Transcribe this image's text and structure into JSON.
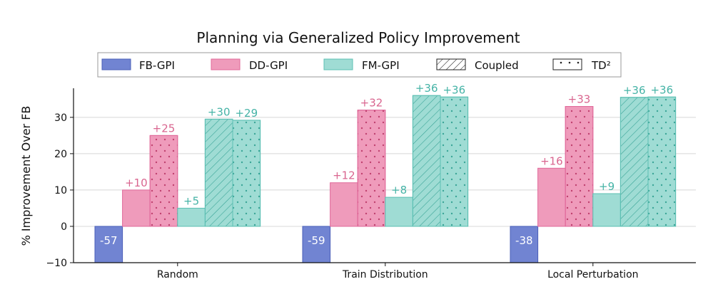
{
  "chart_data": {
    "type": "bar",
    "title": "Planning via Generalized Policy Improvement",
    "xlabel": "",
    "ylabel": "% Improvement Over FB",
    "ylim": [
      -10,
      38
    ],
    "yticks": [
      -10,
      0,
      10,
      20,
      30
    ],
    "grid": "horizontal",
    "legend_position": "top",
    "categories": [
      "Random",
      "Train Distribution",
      "Local Perturbation"
    ],
    "legend": [
      "FB-GPI",
      "DD-GPI",
      "FM-GPI",
      "Coupled",
      "TD²"
    ],
    "series": [
      {
        "name": "FB-GPI",
        "method": "FB",
        "pattern": "none",
        "values": [
          -57,
          -59,
          -38
        ],
        "labels": [
          "-57",
          "-59",
          "-38"
        ],
        "clipped": true,
        "label_color": "#ffffff"
      },
      {
        "name": "DD-GPI Coupled",
        "method": "DD",
        "pattern": "none",
        "values": [
          10,
          12,
          16
        ],
        "labels": [
          "+10",
          "+12",
          "+16"
        ],
        "label_color": "#d9658f"
      },
      {
        "name": "DD-GPI TD²",
        "method": "DD",
        "pattern": "dots",
        "values": [
          25,
          32,
          33
        ],
        "labels": [
          "+25",
          "+32",
          "+33"
        ],
        "label_color": "#d9658f"
      },
      {
        "name": "FM-GPI Coupled",
        "method": "FM",
        "pattern": "none",
        "values": [
          5,
          8,
          9
        ],
        "labels": [
          "+5",
          "+8",
          "+9"
        ],
        "label_color": "#45b3a6"
      },
      {
        "name": "FM-GPI Coupled hatched",
        "method": "FM",
        "pattern": "hatch",
        "values": [
          29.5,
          36,
          35.5
        ],
        "labels": [
          "+30",
          "+36",
          "+36"
        ],
        "label_color": "#45b3a6"
      },
      {
        "name": "FM-GPI TD²",
        "method": "FM",
        "pattern": "dots",
        "values": [
          29.2,
          35.6,
          35.6
        ],
        "labels": [
          "+29",
          "+36",
          "+36"
        ],
        "label_color": "#45b3a6"
      }
    ],
    "colors": {
      "FB": {
        "fill": "#7184d2",
        "stroke": "#4a5fb8"
      },
      "DD": {
        "fill": "#ef9bbb",
        "stroke": "#e0699a"
      },
      "FM": {
        "fill": "#9fdcd4",
        "stroke": "#5cc0b3"
      }
    }
  }
}
